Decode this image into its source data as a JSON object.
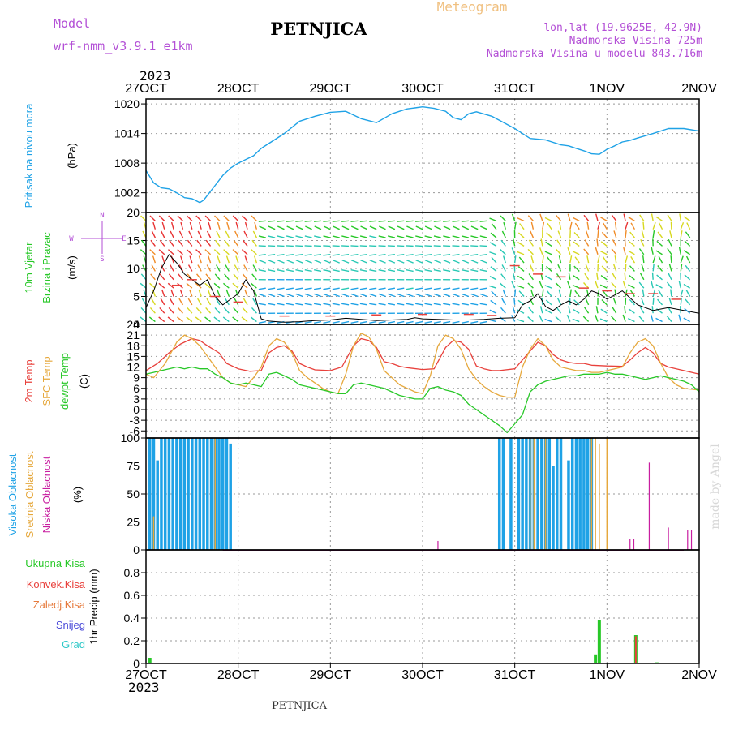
{
  "header": {
    "model_label": "Model",
    "model_name": "wrf-nmm_v3.9.1  e1km",
    "station": "PETNJICA",
    "product": "Meteogram",
    "lonlat": "lon,lat (19.9625E, 42.9N)",
    "elevation": "Nadmorska Visina 725m",
    "model_elevation": "Nadmorska Visina u modelu 843.716m",
    "footer_station": "PETNJICA",
    "credit": "made by Angel",
    "year_top": "2023",
    "year_bottom": "2023"
  },
  "colors": {
    "pressure": "#1fa2e6",
    "t2m": "#e8413c",
    "tsfc": "#e6a83c",
    "dewpt": "#28c828",
    "high_cloud": "#1fa2e6",
    "mid_cloud": "#e6a83c",
    "low_cloud": "#c81ea0",
    "model_text": "#b34fd6",
    "product_text": "#f0c080",
    "precip": "#28c828"
  },
  "chart_data": [
    {
      "type": "line",
      "panel": "pressure",
      "ylabel": [
        "Pritisak na nivou mora",
        "(hPa)"
      ],
      "yticks": [
        1002,
        1008,
        1014,
        1020
      ],
      "ylim": [
        998,
        1021
      ],
      "xticks": [
        "27OCT",
        "28OCT",
        "29OCT",
        "30OCT",
        "31OCT",
        "1NOV",
        "2NOV"
      ],
      "xlim_hours": [
        0,
        144
      ],
      "x_hours": [
        0,
        2,
        4,
        6,
        8,
        10,
        12,
        14,
        15,
        16,
        18,
        20,
        22,
        24,
        28,
        30,
        36,
        40,
        44,
        48,
        52,
        56,
        60,
        64,
        66,
        68,
        70,
        72,
        75,
        78,
        80,
        82,
        84,
        86,
        90,
        96,
        100,
        104,
        108,
        110,
        112,
        114,
        116,
        118,
        120,
        122,
        124,
        126,
        128,
        132,
        136,
        140,
        144
      ],
      "values": [
        1006.5,
        1004,
        1003,
        1002.8,
        1002,
        1001,
        1000.8,
        1000,
        1000.5,
        1001.5,
        1003.5,
        1005.5,
        1007,
        1008,
        1009.5,
        1011,
        1014,
        1016.5,
        1017.5,
        1018.3,
        1018.5,
        1017,
        1016.2,
        1018,
        1018.5,
        1019,
        1019.2,
        1019.4,
        1019.1,
        1018.5,
        1017.2,
        1016.8,
        1018,
        1018.4,
        1017.5,
        1015,
        1013,
        1012.7,
        1011.7,
        1011.5,
        1011,
        1010.5,
        1009.9,
        1009.8,
        1010.8,
        1011.5,
        1012.3,
        1012.6,
        1013.1,
        1014,
        1015,
        1015,
        1014.5
      ]
    },
    {
      "type": "line",
      "panel": "wind",
      "ylabel": [
        "10m Vjetar",
        "Brzina i Pravac",
        "(m/s)"
      ],
      "compass": {
        "n": "N",
        "s": "S",
        "e": "E",
        "w": "W"
      },
      "yticks": [
        0,
        5,
        10,
        15,
        20
      ],
      "ylim": [
        0,
        20
      ],
      "x_hours": [
        0,
        2,
        4,
        6,
        8,
        10,
        12,
        14,
        16,
        18,
        20,
        22,
        24,
        26,
        28,
        30,
        32,
        34,
        36,
        40,
        44,
        48,
        52,
        56,
        60,
        64,
        68,
        70,
        72,
        76,
        80,
        84,
        88,
        92,
        96,
        98,
        100,
        102,
        104,
        106,
        108,
        110,
        112,
        114,
        116,
        118,
        120,
        124,
        128,
        132,
        136,
        140,
        144
      ],
      "speed": [
        3,
        6,
        10,
        12.5,
        11,
        9,
        8,
        7,
        8,
        5,
        3.5,
        4.5,
        5.5,
        8,
        6,
        1,
        0.6,
        0.5,
        0.4,
        0.5,
        0.7,
        0.8,
        1.1,
        0.9,
        0.7,
        0.8,
        0.9,
        1.2,
        1,
        0.9,
        0.8,
        0.8,
        0.9,
        1.1,
        1.2,
        3.5,
        4.2,
        5.5,
        3.2,
        2.5,
        3.5,
        4.2,
        3.5,
        4.5,
        6,
        5.5,
        4.5,
        6,
        3.5,
        2.5,
        3,
        2.5,
        2
      ],
      "gust_x_hours": [
        8,
        12,
        18,
        24,
        36,
        48,
        60,
        72,
        84,
        90,
        96,
        102,
        108,
        114,
        120,
        126,
        132,
        138
      ],
      "gust": [
        7,
        8,
        5,
        4,
        1.5,
        1.5,
        1.7,
        1.8,
        1.8,
        1.6,
        10.5,
        9,
        8.5,
        6.5,
        6,
        5.5,
        5.5,
        4.5
      ]
    },
    {
      "type": "line",
      "panel": "temperature",
      "ylabel": [
        "2m Temp",
        "SFC Temp",
        "dewpt Temp",
        "(C)"
      ],
      "yticks": [
        -6,
        -3,
        0,
        3,
        6,
        9,
        12,
        15,
        18,
        21,
        24
      ],
      "ylim": [
        -8,
        24
      ],
      "series": [
        {
          "name": "2m Temp",
          "x_hours": [
            0,
            3,
            6,
            9,
            12,
            14,
            16,
            19,
            21,
            24,
            27,
            30,
            32,
            34,
            36,
            38,
            40,
            42,
            44,
            48,
            51,
            54,
            56,
            58,
            60,
            62,
            64,
            66,
            68,
            72,
            75,
            78,
            80,
            82,
            84,
            86,
            88,
            90,
            92,
            96,
            100,
            102,
            104,
            106,
            108,
            110,
            112,
            114,
            116,
            120,
            124,
            126,
            128,
            130,
            132,
            134,
            136,
            140,
            144
          ],
          "values": [
            11,
            13,
            16,
            18.5,
            20,
            19.5,
            18,
            16,
            13,
            11.5,
            10.8,
            11,
            16,
            17.5,
            18,
            16.5,
            13,
            12,
            11.2,
            11,
            12,
            18,
            20,
            19.5,
            17.5,
            13.5,
            13,
            12.2,
            11.8,
            11.3,
            11.5,
            17.5,
            19.5,
            19,
            17,
            12.3,
            11.5,
            11,
            11,
            11.5,
            16.5,
            19,
            18,
            15.5,
            14,
            13.3,
            13,
            13,
            12.5,
            12.3,
            12.2,
            14,
            16,
            17.5,
            16,
            13,
            12,
            11,
            10
          ]
        },
        {
          "name": "SFC Temp",
          "x_hours": [
            0,
            2,
            5,
            8,
            10,
            12,
            14,
            16,
            18,
            20,
            22,
            24,
            26,
            28,
            30,
            32,
            34,
            36,
            38,
            40,
            42,
            44,
            46,
            48,
            50,
            52,
            54,
            56,
            58,
            60,
            62,
            64,
            66,
            68,
            70,
            72,
            74,
            76,
            78,
            80,
            82,
            84,
            86,
            88,
            90,
            92,
            94,
            96,
            98,
            100,
            102,
            104,
            106,
            108,
            110,
            112,
            114,
            116,
            118,
            120,
            122,
            124,
            126,
            128,
            130,
            132,
            134,
            136,
            138,
            140,
            144
          ],
          "values": [
            10,
            9,
            13,
            19,
            21,
            20,
            18,
            15,
            12,
            9,
            7.5,
            7,
            6.5,
            9,
            12,
            18,
            20,
            19,
            16,
            11,
            9,
            7.5,
            6,
            5,
            4.5,
            10,
            18,
            21.5,
            20.5,
            17,
            11,
            9,
            7,
            6,
            5,
            4.5,
            9.5,
            18,
            21,
            20,
            17,
            11.5,
            8.5,
            6.5,
            5,
            4,
            3.5,
            3.5,
            12,
            17,
            20,
            18,
            14,
            12,
            11.5,
            11,
            11,
            10.5,
            10.5,
            11,
            11.5,
            12,
            16,
            19,
            20,
            18,
            13,
            9,
            7,
            6,
            5.5
          ]
        },
        {
          "name": "dewpt Temp",
          "x_hours": [
            0,
            2,
            4,
            6,
            8,
            10,
            12,
            14,
            16,
            18,
            20,
            22,
            24,
            26,
            28,
            30,
            32,
            34,
            36,
            38,
            40,
            42,
            44,
            46,
            48,
            50,
            52,
            54,
            56,
            58,
            60,
            62,
            64,
            66,
            68,
            70,
            72,
            74,
            76,
            78,
            80,
            82,
            84,
            86,
            88,
            90,
            92,
            94,
            96,
            98,
            100,
            102,
            104,
            106,
            108,
            110,
            112,
            114,
            116,
            118,
            120,
            122,
            124,
            126,
            128,
            130,
            132,
            134,
            136,
            138,
            140,
            142,
            144
          ],
          "values": [
            10,
            10.5,
            11,
            11.5,
            12,
            11.5,
            12,
            11.5,
            11.5,
            10,
            9,
            7.5,
            7,
            7.5,
            7,
            6.5,
            10,
            10.5,
            9.5,
            8.5,
            7,
            6.5,
            6,
            5.5,
            5,
            4.5,
            4.5,
            7,
            7.5,
            7,
            6.5,
            6,
            5,
            4,
            3.5,
            3,
            3,
            6,
            6.5,
            5.5,
            5,
            4,
            1.5,
            0,
            -1.5,
            -3,
            -4.5,
            -6.5,
            -4,
            -1.5,
            5,
            7,
            8,
            8.5,
            9,
            9.5,
            9.5,
            10,
            10,
            10,
            10.5,
            10,
            10,
            9.5,
            9,
            8.5,
            9,
            9.5,
            9,
            8.5,
            8,
            7,
            5
          ]
        }
      ]
    },
    {
      "type": "bar",
      "panel": "cloud",
      "ylabel": [
        "Visoka Oblacnost",
        "Srednja Oblacnost",
        "Niska Oblacnost",
        "(%)"
      ],
      "yticks": [
        0,
        25,
        50,
        75,
        100
      ],
      "ylim": [
        0,
        100
      ],
      "series": [
        {
          "name": "Visoka Oblacnost",
          "x_hours": [
            1,
            2,
            3,
            4,
            5,
            6,
            7,
            8,
            9,
            10,
            11,
            12,
            13,
            14,
            15,
            16,
            17,
            18,
            19,
            20,
            21,
            22,
            92,
            93,
            95,
            97,
            98,
            99,
            100,
            101,
            102,
            103,
            104,
            105,
            106,
            107,
            108,
            110,
            111,
            112,
            113,
            114,
            115,
            116
          ],
          "values": [
            100,
            100,
            80,
            100,
            100,
            100,
            100,
            100,
            100,
            100,
            100,
            100,
            100,
            100,
            100,
            100,
            100,
            100,
            100,
            100,
            100,
            95,
            100,
            100,
            100,
            100,
            100,
            100,
            100,
            100,
            100,
            100,
            100,
            100,
            75,
            100,
            100,
            80,
            100,
            100,
            100,
            100,
            100,
            100
          ]
        },
        {
          "name": "Srednja Oblacnost",
          "x_hours": [
            2,
            18,
            100,
            101,
            104,
            116,
            117,
            118,
            120
          ],
          "values": [
            30,
            100,
            100,
            100,
            100,
            100,
            100,
            95,
            100
          ]
        },
        {
          "name": "Niska Oblacnost",
          "x_hours": [
            76,
            126,
            127,
            131,
            136,
            141,
            142
          ],
          "values": [
            8,
            10,
            10,
            78,
            20,
            18,
            18
          ]
        }
      ]
    },
    {
      "type": "bar",
      "panel": "precip",
      "ylabel": [
        "1hr Precip (mm)"
      ],
      "legend": [
        "Ukupna Kisa",
        "Konvek.Kisa",
        "Zaledj.Kisa",
        "Snijeg",
        "Grad"
      ],
      "legend_colors": [
        "#28c828",
        "#e8413c",
        "#e67a3c",
        "#4b4bd9",
        "#2fc8c8"
      ],
      "yticks": [
        0,
        0.2,
        0.4,
        0.6,
        0.8
      ],
      "ylim": [
        0,
        1.0
      ],
      "x_hours": [
        1,
        117,
        118,
        127.5,
        133
      ],
      "values": [
        0.05,
        0.08,
        0.38,
        0.25,
        0.01
      ],
      "convective_x_hours": [
        127.5
      ],
      "convective": [
        0.24
      ]
    }
  ]
}
